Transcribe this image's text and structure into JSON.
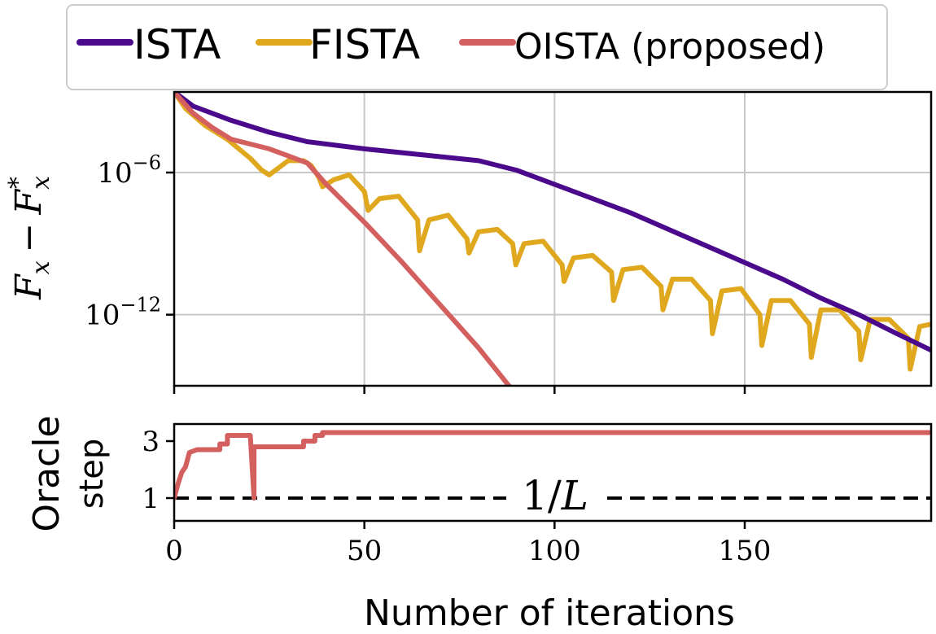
{
  "chart_data": [
    {
      "type": "line",
      "panel": "top",
      "ylabel": "F_x − F_x*",
      "ylabel_parts": {
        "base1": "F",
        "sub1": "x",
        "minus": "−",
        "base2": "F",
        "sub2": "x",
        "sup2": "*"
      },
      "yscale": "log",
      "xlim": [
        0,
        199
      ],
      "ylim_exp": [
        -15,
        -2.6
      ],
      "yticks": [
        {
          "exp": -6,
          "base": "10",
          "sup": "−6"
        },
        {
          "exp": -12,
          "base": "10",
          "sup": "−12"
        }
      ],
      "xticks": [
        0,
        50,
        100,
        150
      ],
      "grid": true,
      "legend": {
        "placement": "top",
        "entries": [
          "ISTA",
          "FISTA",
          "OISTA (proposed)"
        ]
      },
      "series": [
        {
          "name": "ISTA",
          "color": "#4b0a8c",
          "points_log10": [
            [
              0,
              -2.6
            ],
            [
              5,
              -3.2
            ],
            [
              15,
              -3.8
            ],
            [
              25,
              -4.3
            ],
            [
              35,
              -4.7
            ],
            [
              50,
              -5.0
            ],
            [
              65,
              -5.25
            ],
            [
              80,
              -5.5
            ],
            [
              90,
              -5.9
            ],
            [
              100,
              -6.5
            ],
            [
              110,
              -7.1
            ],
            [
              120,
              -7.7
            ],
            [
              130,
              -8.4
            ],
            [
              140,
              -9.1
            ],
            [
              150,
              -9.8
            ],
            [
              160,
              -10.5
            ],
            [
              170,
              -11.3
            ],
            [
              180,
              -12.0
            ],
            [
              190,
              -12.8
            ],
            [
              199,
              -13.5
            ]
          ]
        },
        {
          "name": "FISTA",
          "color": "#e0a81e",
          "points_log10": [
            [
              0,
              -2.6
            ],
            [
              3,
              -3.3
            ],
            [
              8,
              -4.0
            ],
            [
              14,
              -4.6
            ],
            [
              20,
              -5.4
            ],
            [
              23,
              -5.9
            ],
            [
              25,
              -6.1
            ],
            [
              30,
              -5.5
            ],
            [
              34,
              -5.5
            ],
            [
              36,
              -5.7
            ],
            [
              38,
              -6.2
            ],
            [
              39,
              -6.6
            ],
            [
              42,
              -6.3
            ],
            [
              46,
              -6.1
            ],
            [
              50,
              -6.8
            ],
            [
              51,
              -7.6
            ],
            [
              54,
              -7.1
            ],
            [
              59,
              -7.0
            ],
            [
              64,
              -8.0
            ],
            [
              64.5,
              -9.3
            ],
            [
              67,
              -8.0
            ],
            [
              72,
              -7.8
            ],
            [
              77,
              -8.8
            ],
            [
              77.5,
              -9.4
            ],
            [
              80,
              -8.5
            ],
            [
              85,
              -8.4
            ],
            [
              89,
              -9.0
            ],
            [
              89.8,
              -9.9
            ],
            [
              92,
              -9.0
            ],
            [
              97,
              -8.9
            ],
            [
              102,
              -9.9
            ],
            [
              102.5,
              -10.6
            ],
            [
              105,
              -9.6
            ],
            [
              110,
              -9.5
            ],
            [
              115,
              -10.2
            ],
            [
              115.5,
              -11.4
            ],
            [
              118,
              -10.1
            ],
            [
              123,
              -10.0
            ],
            [
              128,
              -10.8
            ],
            [
              128.5,
              -11.8
            ],
            [
              131,
              -10.5
            ],
            [
              136,
              -10.5
            ],
            [
              141,
              -11.4
            ],
            [
              141.5,
              -12.8
            ],
            [
              144,
              -11.0
            ],
            [
              149,
              -10.9
            ],
            [
              154,
              -12.0
            ],
            [
              154.5,
              -13.3
            ],
            [
              157,
              -11.4
            ],
            [
              162,
              -11.4
            ],
            [
              167,
              -12.4
            ],
            [
              167.5,
              -13.8
            ],
            [
              170,
              -11.8
            ],
            [
              175,
              -11.8
            ],
            [
              180,
              -12.7
            ],
            [
              180.5,
              -13.9
            ],
            [
              183,
              -12.2
            ],
            [
              188,
              -12.2
            ],
            [
              193,
              -13.0
            ],
            [
              193.5,
              -14.3
            ],
            [
              196,
              -12.5
            ],
            [
              199,
              -12.4
            ]
          ]
        },
        {
          "name": "OISTA (proposed)",
          "color": "#d45f5f",
          "points_log10": [
            [
              0,
              -2.6
            ],
            [
              5,
              -3.5
            ],
            [
              10,
              -4.1
            ],
            [
              15,
              -4.6
            ],
            [
              20,
              -4.8
            ],
            [
              25,
              -5.0
            ],
            [
              30,
              -5.3
            ],
            [
              35,
              -5.6
            ],
            [
              40,
              -6.5
            ],
            [
              50,
              -8.1
            ],
            [
              60,
              -9.8
            ],
            [
              70,
              -11.6
            ],
            [
              80,
              -13.4
            ],
            [
              88,
              -15.0
            ]
          ]
        }
      ]
    },
    {
      "type": "line",
      "panel": "bottom",
      "ylabel_lines": [
        "Oracle",
        "step"
      ],
      "xlabel": "Number of iterations",
      "xlim": [
        0,
        199
      ],
      "ylim": [
        0.2,
        3.6
      ],
      "yticks": [
        "1",
        "3"
      ],
      "xticks": [
        "0",
        "50",
        "100",
        "150"
      ],
      "annotation": {
        "base": "1/",
        "italic": "L",
        "y": 1
      },
      "series": [
        {
          "name": "OISTA (proposed)",
          "color": "#d45f5f",
          "points": [
            [
              0,
              1.0
            ],
            [
              1,
              1.5
            ],
            [
              2,
              1.9
            ],
            [
              3,
              2.1
            ],
            [
              4,
              2.6
            ],
            [
              6,
              2.7
            ],
            [
              12,
              2.7
            ],
            [
              12,
              2.9
            ],
            [
              14,
              2.9
            ],
            [
              14,
              3.2
            ],
            [
              20,
              3.2
            ],
            [
              21,
              1.0
            ],
            [
              21,
              2.8
            ],
            [
              34,
              2.8
            ],
            [
              34,
              3.0
            ],
            [
              37,
              3.0
            ],
            [
              37,
              3.2
            ],
            [
              39,
              3.2
            ],
            [
              39,
              3.3
            ],
            [
              199,
              3.3
            ]
          ]
        },
        {
          "name": "1/L",
          "color": "#000000",
          "dashed": true,
          "points": [
            [
              0,
              1.0
            ],
            [
              199,
              1.0
            ]
          ]
        }
      ]
    }
  ]
}
